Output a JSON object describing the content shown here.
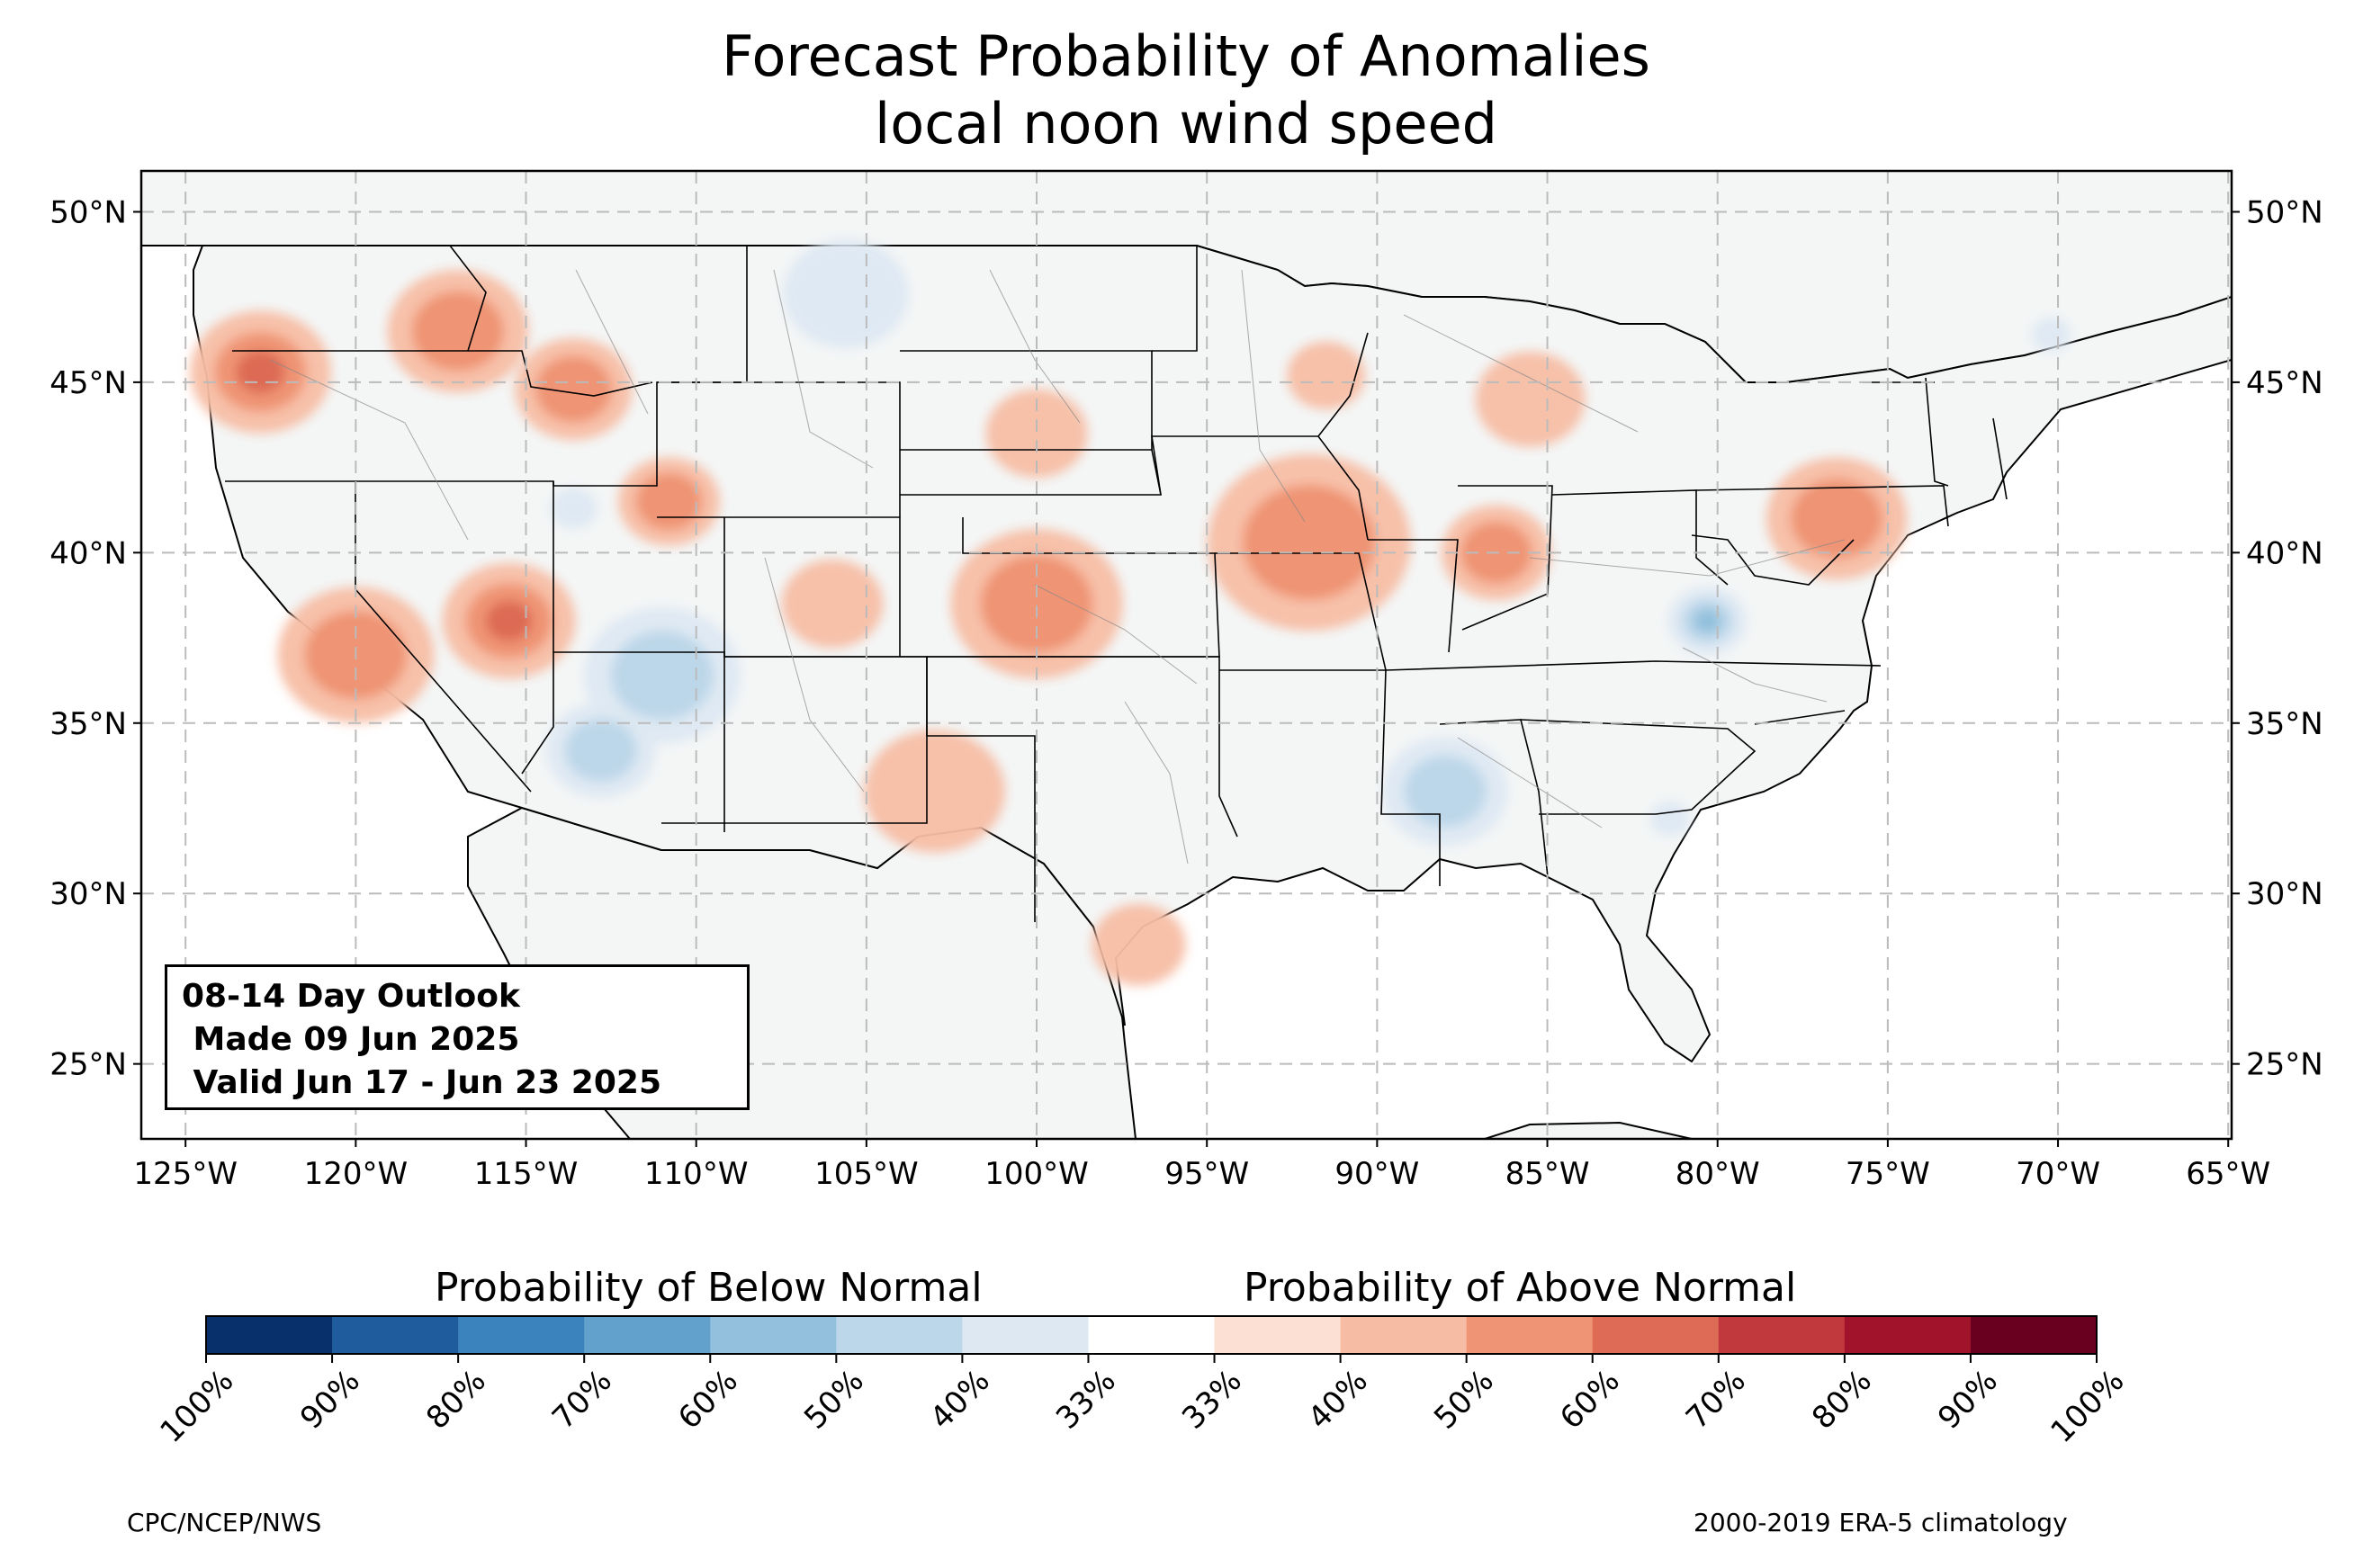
{
  "title_line1": "Forecast Probability of Anomalies",
  "title_line2": "local noon wind speed",
  "info_box": {
    "line1": "08-14 Day Outlook",
    "line2": " Made 09 Jun 2025",
    "line3": " Valid Jun 17 - Jun 23 2025"
  },
  "map": {
    "lat_ticks": [
      "50°N",
      "45°N",
      "40°N",
      "35°N",
      "30°N",
      "25°N"
    ],
    "lon_ticks": [
      "125°W",
      "120°W",
      "115°W",
      "110°W",
      "105°W",
      "100°W",
      "95°W",
      "90°W",
      "85°W",
      "80°W",
      "75°W",
      "70°W",
      "65°W"
    ],
    "lat_values": [
      50,
      45,
      40,
      35,
      30,
      25
    ],
    "lon_values": [
      -125,
      -120,
      -115,
      -110,
      -105,
      -100,
      -95,
      -90,
      -85,
      -80,
      -75,
      -70,
      -65
    ],
    "lon_range": [
      -126.3,
      -64.9
    ],
    "lat_range": [
      22.8,
      51.2
    ],
    "land_color": "#f4f6f6",
    "below_anomalies": [
      {
        "lon": -111.0,
        "lat": 36.4,
        "prob": 50,
        "r": 2.0
      },
      {
        "lon": -112.8,
        "lat": 34.2,
        "prob": 50,
        "r": 1.4
      },
      {
        "lon": -105.6,
        "lat": 47.6,
        "prob": 40,
        "r": 1.6
      },
      {
        "lon": -80.3,
        "lat": 38.0,
        "prob": 60,
        "r": 1.0
      },
      {
        "lon": -88.0,
        "lat": 33.0,
        "prob": 50,
        "r": 1.6
      },
      {
        "lon": -113.6,
        "lat": 41.3,
        "prob": 40,
        "r": 0.6
      },
      {
        "lon": -70.2,
        "lat": 46.4,
        "prob": 40,
        "r": 0.5
      },
      {
        "lon": -81.4,
        "lat": 32.2,
        "prob": 40,
        "r": 0.5
      }
    ],
    "above_anomalies": [
      {
        "lon": -122.8,
        "lat": 45.3,
        "prob": 60,
        "r": 1.8
      },
      {
        "lon": -117.0,
        "lat": 46.5,
        "prob": 50,
        "r": 1.8
      },
      {
        "lon": -113.6,
        "lat": 44.8,
        "prob": 50,
        "r": 1.5
      },
      {
        "lon": -120.0,
        "lat": 37.0,
        "prob": 50,
        "r": 2.0
      },
      {
        "lon": -115.5,
        "lat": 38.0,
        "prob": 60,
        "r": 1.7
      },
      {
        "lon": -110.8,
        "lat": 41.5,
        "prob": 50,
        "r": 1.3
      },
      {
        "lon": -100.0,
        "lat": 38.5,
        "prob": 50,
        "r": 2.2
      },
      {
        "lon": -92.0,
        "lat": 40.3,
        "prob": 50,
        "r": 2.6
      },
      {
        "lon": -86.5,
        "lat": 40.0,
        "prob": 50,
        "r": 1.4
      },
      {
        "lon": -76.5,
        "lat": 41.0,
        "prob": 50,
        "r": 1.8
      },
      {
        "lon": -85.5,
        "lat": 44.5,
        "prob": 40,
        "r": 1.4
      },
      {
        "lon": -103.0,
        "lat": 33.0,
        "prob": 40,
        "r": 1.8
      },
      {
        "lon": -97.0,
        "lat": 28.5,
        "prob": 40,
        "r": 1.2
      },
      {
        "lon": -106.0,
        "lat": 38.5,
        "prob": 40,
        "r": 1.3
      },
      {
        "lon": -100.0,
        "lat": 43.5,
        "prob": 40,
        "r": 1.3
      },
      {
        "lon": -91.5,
        "lat": 45.2,
        "prob": 40,
        "r": 1.0
      }
    ]
  },
  "legend": {
    "below_label": "Probability of Below Normal",
    "above_label": "Probability of Above Normal",
    "tick_labels": [
      "100%",
      "90%",
      "80%",
      "70%",
      "60%",
      "50%",
      "40%",
      "33%",
      "33%",
      "40%",
      "50%",
      "60%",
      "70%",
      "80%",
      "90%",
      "100%"
    ],
    "colors": [
      "#08306b",
      "#1f5c9e",
      "#3b83bd",
      "#62a1cb",
      "#92c0dd",
      "#bcd7e9",
      "#dde8f2",
      "#ffffff",
      "#fbe0d3",
      "#f7bda4",
      "#ef9474",
      "#dd6b55",
      "#c1393c",
      "#a0132a",
      "#6a0020"
    ]
  },
  "credit_left": "CPC/NCEP/NWS",
  "credit_right": "2000-2019 ERA-5 climatology"
}
